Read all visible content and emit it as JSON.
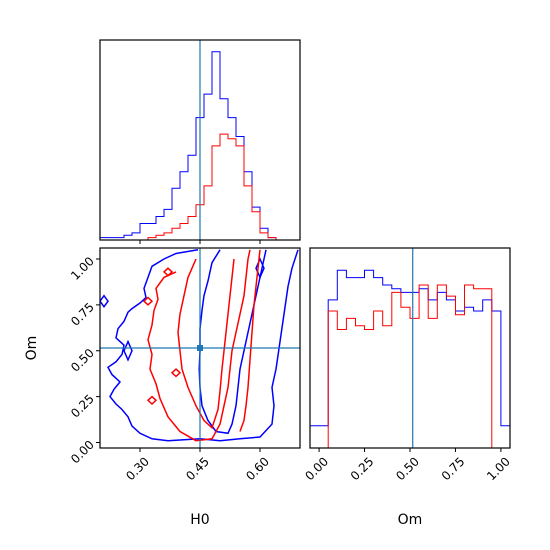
{
  "chart_data": {
    "type": "corner",
    "series": [
      {
        "name": "",
        "color": "#0000ff"
      },
      {
        "name": "",
        "color": "#ff0000"
      }
    ],
    "truth_line_color": "#1f77b4",
    "truths": {
      "H0": 0.45,
      "Om": 0.515
    },
    "panels": [
      {
        "id": "hist-H0",
        "type": "histogram",
        "xlim": [
          0.2,
          0.7
        ],
        "xticks": [
          0.3,
          0.45,
          0.6
        ],
        "bin_edges": [
          0.2,
          0.22,
          0.24,
          0.26,
          0.28,
          0.3,
          0.32,
          0.34,
          0.36,
          0.38,
          0.4,
          0.42,
          0.44,
          0.46,
          0.48,
          0.5,
          0.52,
          0.54,
          0.56,
          0.58,
          0.6,
          0.62,
          0.64,
          0.66
        ],
        "blue": [
          1,
          1,
          1,
          2,
          3,
          7,
          7,
          10,
          13,
          22,
          29,
          36,
          52,
          62,
          80,
          60,
          52,
          44,
          29,
          14,
          5,
          1,
          0
        ],
        "red": [
          0,
          0,
          0,
          0,
          0,
          0,
          1,
          2,
          3,
          5,
          7,
          10,
          15,
          23,
          40,
          45,
          43,
          40,
          23,
          12,
          3,
          1,
          0
        ],
        "ymax": 85
      },
      {
        "id": "hist-Om",
        "type": "histogram",
        "xlim": [
          -0.05,
          1.05
        ],
        "xticks": [
          0.0,
          0.25,
          0.5,
          0.75,
          1.0
        ],
        "xticklabels": [
          "0.00",
          "0.25",
          "0.50",
          "0.75",
          "1.00"
        ],
        "xlabel": "Om",
        "bin_edges": [
          -0.05,
          0.0,
          0.05,
          0.1,
          0.15,
          0.2,
          0.25,
          0.3,
          0.35,
          0.4,
          0.45,
          0.5,
          0.55,
          0.6,
          0.65,
          0.7,
          0.75,
          0.8,
          0.85,
          0.9,
          0.95,
          1.0,
          1.05
        ],
        "blue": [
          6,
          6,
          40,
          48,
          46,
          46,
          48,
          46,
          44,
          43,
          42,
          42,
          43,
          40,
          42,
          40,
          37,
          38,
          37,
          40,
          37,
          6
        ],
        "red": [
          0,
          0,
          37,
          32,
          35,
          33,
          32,
          37,
          33,
          42,
          38,
          35,
          44,
          35,
          44,
          41,
          36,
          44,
          43,
          43,
          0,
          0
        ],
        "ymax": 54
      },
      {
        "id": "contour-H0-Om",
        "type": "contour",
        "xlim": [
          0.2,
          0.7
        ],
        "ylim": [
          -0.03,
          1.06
        ],
        "xticks": [
          0.3,
          0.45,
          0.6
        ],
        "xticklabels": [
          "0.30",
          "0.45",
          "0.60"
        ],
        "yticks": [
          0.0,
          0.25,
          0.5,
          0.75,
          1.0
        ],
        "yticklabels": [
          "0.00",
          "0.25",
          "0.50",
          "0.75",
          "1.00"
        ],
        "xlabel": "H0",
        "ylabel": "Om",
        "blue_contours": [
          [
            [
              0.445,
              1.05
            ],
            [
              0.39,
              1.03
            ],
            [
              0.36,
              1.0
            ],
            [
              0.33,
              0.96
            ],
            [
              0.32,
              0.9
            ],
            [
              0.31,
              0.84
            ],
            [
              0.315,
              0.79
            ],
            [
              0.3,
              0.76
            ],
            [
              0.28,
              0.73
            ],
            [
              0.27,
              0.71
            ],
            [
              0.26,
              0.66
            ],
            [
              0.245,
              0.62
            ],
            [
              0.24,
              0.57
            ],
            [
              0.26,
              0.53
            ],
            [
              0.255,
              0.48
            ],
            [
              0.24,
              0.44
            ],
            [
              0.22,
              0.41
            ],
            [
              0.23,
              0.37
            ],
            [
              0.25,
              0.33
            ],
            [
              0.235,
              0.29
            ],
            [
              0.225,
              0.25
            ],
            [
              0.24,
              0.21
            ],
            [
              0.255,
              0.18
            ],
            [
              0.27,
              0.14
            ],
            [
              0.28,
              0.09
            ],
            [
              0.3,
              0.05
            ],
            [
              0.33,
              0.02
            ],
            [
              0.37,
              0.01
            ],
            [
              0.41,
              0.015
            ],
            [
              0.45,
              0.02
            ],
            [
              0.5,
              0.01
            ],
            [
              0.55,
              0.02
            ],
            [
              0.6,
              0.03
            ],
            [
              0.63,
              0.1
            ],
            [
              0.635,
              0.2
            ],
            [
              0.63,
              0.3
            ],
            [
              0.64,
              0.4
            ],
            [
              0.65,
              0.55
            ],
            [
              0.66,
              0.7
            ],
            [
              0.67,
              0.85
            ],
            [
              0.68,
              0.95
            ],
            [
              0.695,
              1.05
            ]
          ],
          [
            [
              0.5,
              1.05
            ],
            [
              0.48,
              0.98
            ],
            [
              0.47,
              0.88
            ],
            [
              0.46,
              0.8
            ],
            [
              0.455,
              0.72
            ],
            [
              0.45,
              0.62
            ],
            [
              0.45,
              0.5
            ],
            [
              0.448,
              0.4
            ],
            [
              0.45,
              0.3
            ],
            [
              0.455,
              0.2
            ],
            [
              0.47,
              0.12
            ],
            [
              0.49,
              0.06
            ],
            [
              0.52,
              0.05
            ],
            [
              0.53,
              0.1
            ],
            [
              0.54,
              0.2
            ],
            [
              0.545,
              0.3
            ],
            [
              0.55,
              0.4
            ],
            [
              0.56,
              0.5
            ],
            [
              0.57,
              0.6
            ],
            [
              0.58,
              0.7
            ],
            [
              0.59,
              0.8
            ],
            [
              0.6,
              0.9
            ],
            [
              0.61,
              1.0
            ],
            [
              0.615,
              1.05
            ]
          ]
        ],
        "red_contours": [
          [
            [
              0.39,
              0.93
            ],
            [
              0.36,
              0.9
            ],
            [
              0.34,
              0.84
            ],
            [
              0.345,
              0.78
            ],
            [
              0.335,
              0.72
            ],
            [
              0.33,
              0.64
            ],
            [
              0.32,
              0.56
            ],
            [
              0.33,
              0.48
            ],
            [
              0.325,
              0.4
            ],
            [
              0.34,
              0.32
            ],
            [
              0.35,
              0.24
            ],
            [
              0.37,
              0.14
            ],
            [
              0.4,
              0.06
            ],
            [
              0.44,
              0.01
            ],
            [
              0.48,
              0.02
            ],
            [
              0.5,
              0.1
            ],
            [
              0.51,
              0.2
            ],
            [
              0.52,
              0.3
            ],
            [
              0.525,
              0.4
            ],
            [
              0.53,
              0.5
            ],
            [
              0.54,
              0.6
            ],
            [
              0.55,
              0.7
            ],
            [
              0.56,
              0.8
            ],
            [
              0.565,
              0.9
            ],
            [
              0.57,
              1.0
            ],
            [
              0.575,
              1.05
            ]
          ],
          [
            [
              0.44,
              1.0
            ],
            [
              0.42,
              0.9
            ],
            [
              0.41,
              0.8
            ],
            [
              0.4,
              0.7
            ],
            [
              0.395,
              0.6
            ],
            [
              0.4,
              0.5
            ],
            [
              0.405,
              0.4
            ],
            [
              0.42,
              0.3
            ],
            [
              0.44,
              0.2
            ],
            [
              0.46,
              0.12
            ],
            [
              0.48,
              0.08
            ],
            [
              0.495,
              0.18
            ],
            [
              0.5,
              0.28
            ],
            [
              0.505,
              0.4
            ],
            [
              0.51,
              0.5
            ],
            [
              0.515,
              0.6
            ],
            [
              0.52,
              0.7
            ],
            [
              0.525,
              0.8
            ],
            [
              0.53,
              0.9
            ],
            [
              0.535,
              1.0
            ]
          ],
          [
            [
              0.6,
              1.05
            ],
            [
              0.595,
              0.95
            ],
            [
              0.59,
              0.85
            ],
            [
              0.585,
              0.75
            ],
            [
              0.58,
              0.6
            ],
            [
              0.575,
              0.45
            ],
            [
              0.57,
              0.3
            ],
            [
              0.565,
              0.2
            ],
            [
              0.56,
              0.12
            ],
            [
              0.55,
              0.06
            ]
          ]
        ],
        "red_islands": [
          [
            [
              0.37,
              0.95
            ],
            [
              0.38,
              0.93
            ],
            [
              0.37,
              0.91
            ],
            [
              0.36,
              0.93
            ],
            [
              0.37,
              0.95
            ]
          ],
          [
            [
              0.32,
              0.79
            ],
            [
              0.33,
              0.77
            ],
            [
              0.32,
              0.75
            ],
            [
              0.31,
              0.77
            ],
            [
              0.32,
              0.79
            ]
          ],
          [
            [
              0.33,
              0.25
            ],
            [
              0.34,
              0.23
            ],
            [
              0.33,
              0.21
            ],
            [
              0.32,
              0.23
            ],
            [
              0.33,
              0.25
            ]
          ],
          [
            [
              0.39,
              0.4
            ],
            [
              0.4,
              0.38
            ],
            [
              0.39,
              0.36
            ],
            [
              0.38,
              0.38
            ],
            [
              0.39,
              0.4
            ]
          ]
        ],
        "blue_islands": [
          [
            [
              0.21,
              0.8
            ],
            [
              0.22,
              0.77
            ],
            [
              0.21,
              0.74
            ],
            [
              0.2,
              0.77
            ],
            [
              0.21,
              0.8
            ]
          ],
          [
            [
              0.27,
              0.55
            ],
            [
              0.28,
              0.5
            ],
            [
              0.27,
              0.45
            ],
            [
              0.26,
              0.5
            ],
            [
              0.27,
              0.55
            ]
          ],
          [
            [
              0.6,
              1.0
            ],
            [
              0.61,
              0.95
            ],
            [
              0.6,
              0.9
            ],
            [
              0.59,
              0.95
            ],
            [
              0.6,
              1.0
            ]
          ]
        ]
      }
    ]
  }
}
